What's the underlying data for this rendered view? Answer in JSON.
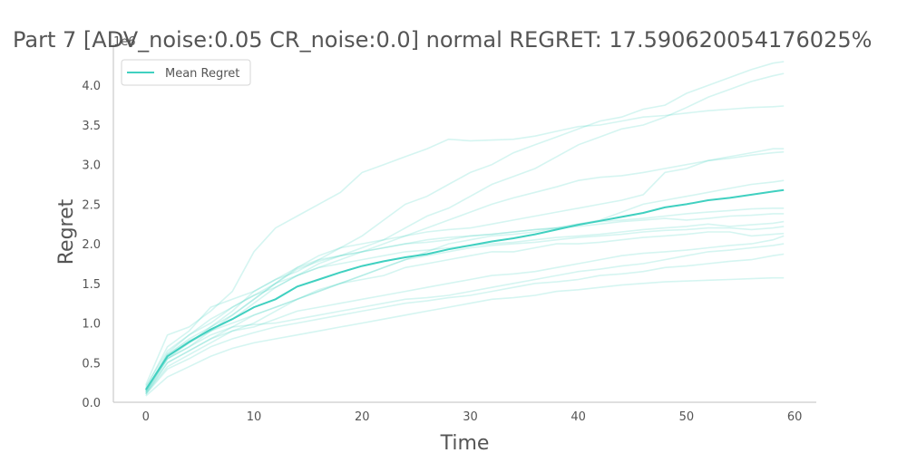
{
  "chart_data": {
    "type": "line",
    "title": "Part 7 [ADV_noise:0.05 CR_noise:0.0] normal REGRET: 17.590620054176025%",
    "xlabel": "Time",
    "ylabel": "Regret",
    "y_scale_label": "1e6",
    "xlim": [
      -3,
      62
    ],
    "ylim": [
      0,
      4.3
    ],
    "x_ticks": [
      0,
      10,
      20,
      30,
      40,
      50,
      60
    ],
    "y_ticks": [
      0.0,
      0.5,
      1.0,
      1.5,
      2.0,
      2.5,
      3.0,
      3.5,
      4.0
    ],
    "x_tick_labels": [
      "0",
      "10",
      "20",
      "30",
      "40",
      "50",
      "60"
    ],
    "y_tick_labels": [
      "0.0",
      "0.5",
      "1.0",
      "1.5",
      "2.0",
      "2.5",
      "3.0",
      "3.5",
      "4.0"
    ],
    "grid": false,
    "legend": {
      "position": "top-left",
      "entries": [
        "Mean Regret"
      ]
    },
    "colors": {
      "mean": "#40d0c0",
      "runs": "#40d0c0",
      "axis": "#cccccc",
      "text": "#555555"
    },
    "x": [
      0,
      2,
      4,
      6,
      8,
      10,
      12,
      14,
      16,
      18,
      20,
      22,
      24,
      26,
      28,
      30,
      32,
      34,
      36,
      38,
      40,
      42,
      44,
      46,
      48,
      50,
      52,
      54,
      56,
      58,
      59
    ],
    "series": [
      {
        "name": "Mean Regret",
        "role": "mean",
        "values": [
          0.16,
          0.58,
          0.76,
          0.92,
          1.05,
          1.2,
          1.3,
          1.46,
          1.55,
          1.64,
          1.72,
          1.78,
          1.83,
          1.87,
          1.93,
          1.98,
          2.03,
          2.07,
          2.12,
          2.18,
          2.24,
          2.29,
          2.34,
          2.39,
          2.46,
          2.5,
          2.55,
          2.58,
          2.62,
          2.66,
          2.68
        ]
      },
      {
        "role": "run",
        "values": [
          0.22,
          0.85,
          0.95,
          1.15,
          1.4,
          1.9,
          2.2,
          2.35,
          2.5,
          2.65,
          2.9,
          3.0,
          3.1,
          3.2,
          3.32,
          3.3,
          3.31,
          3.32,
          3.36,
          3.42,
          3.48,
          3.5,
          3.55,
          3.6,
          3.62,
          3.65,
          3.68,
          3.7,
          3.72,
          3.73,
          3.74
        ]
      },
      {
        "role": "run",
        "values": [
          0.18,
          0.7,
          0.9,
          1.2,
          1.3,
          1.4,
          1.55,
          1.65,
          1.8,
          1.95,
          2.1,
          2.3,
          2.5,
          2.6,
          2.75,
          2.9,
          3.0,
          3.15,
          3.25,
          3.35,
          3.45,
          3.55,
          3.6,
          3.7,
          3.75,
          3.9,
          4.0,
          4.1,
          4.2,
          4.28,
          4.3
        ]
      },
      {
        "role": "run",
        "values": [
          0.15,
          0.62,
          0.85,
          1.05,
          1.2,
          1.35,
          1.45,
          1.6,
          1.75,
          1.85,
          1.95,
          2.05,
          2.2,
          2.35,
          2.45,
          2.6,
          2.75,
          2.85,
          2.95,
          3.1,
          3.25,
          3.35,
          3.45,
          3.5,
          3.6,
          3.72,
          3.85,
          3.95,
          4.05,
          4.12,
          4.15
        ]
      },
      {
        "role": "run",
        "values": [
          0.2,
          0.65,
          0.85,
          1.0,
          1.2,
          1.35,
          1.5,
          1.6,
          1.7,
          1.8,
          1.9,
          2.0,
          2.1,
          2.2,
          2.3,
          2.4,
          2.5,
          2.58,
          2.65,
          2.72,
          2.8,
          2.84,
          2.86,
          2.9,
          2.95,
          3.0,
          3.05,
          3.08,
          3.12,
          3.15,
          3.16
        ]
      },
      {
        "role": "run",
        "values": [
          0.12,
          0.55,
          0.75,
          0.95,
          1.15,
          1.4,
          1.55,
          1.7,
          1.85,
          1.95,
          2.0,
          2.05,
          2.1,
          2.15,
          2.18,
          2.2,
          2.25,
          2.3,
          2.35,
          2.4,
          2.45,
          2.5,
          2.55,
          2.62,
          2.9,
          2.95,
          3.05,
          3.1,
          3.15,
          3.2,
          3.2
        ]
      },
      {
        "role": "run",
        "values": [
          0.1,
          0.5,
          0.65,
          0.8,
          0.95,
          1.1,
          1.2,
          1.3,
          1.4,
          1.5,
          1.6,
          1.7,
          1.8,
          1.9,
          2.0,
          2.05,
          2.1,
          2.12,
          2.15,
          2.2,
          2.25,
          2.3,
          2.4,
          2.5,
          2.55,
          2.6,
          2.65,
          2.7,
          2.75,
          2.78,
          2.8
        ]
      },
      {
        "role": "run",
        "values": [
          0.14,
          0.6,
          0.8,
          0.95,
          1.1,
          1.3,
          1.5,
          1.68,
          1.78,
          1.85,
          1.9,
          1.95,
          2.0,
          2.05,
          2.08,
          2.1,
          2.12,
          2.15,
          2.18,
          2.2,
          2.25,
          2.28,
          2.3,
          2.32,
          2.35,
          2.38,
          2.4,
          2.42,
          2.44,
          2.45,
          2.45
        ]
      },
      {
        "role": "run",
        "values": [
          0.16,
          0.55,
          0.7,
          0.9,
          1.1,
          1.3,
          1.5,
          1.7,
          1.8,
          1.85,
          1.9,
          1.95,
          2.0,
          2.02,
          2.05,
          2.1,
          2.12,
          2.15,
          2.18,
          2.2,
          2.22,
          2.25,
          2.28,
          2.3,
          2.32,
          2.3,
          2.32,
          2.35,
          2.36,
          2.38,
          2.38
        ]
      },
      {
        "role": "run",
        "values": [
          0.13,
          0.58,
          0.75,
          0.9,
          1.05,
          1.25,
          1.45,
          1.6,
          1.7,
          1.75,
          1.8,
          1.85,
          1.9,
          1.92,
          1.95,
          1.98,
          2.0,
          2.02,
          2.05,
          2.08,
          2.1,
          2.12,
          2.15,
          2.18,
          2.2,
          2.22,
          2.25,
          2.22,
          2.24,
          2.26,
          2.28
        ]
      },
      {
        "role": "run",
        "values": [
          0.11,
          0.45,
          0.6,
          0.75,
          0.9,
          1.0,
          1.15,
          1.3,
          1.42,
          1.5,
          1.6,
          1.7,
          1.8,
          1.85,
          1.9,
          1.95,
          1.98,
          2.0,
          2.02,
          2.05,
          2.08,
          2.1,
          2.12,
          2.15,
          2.17,
          2.18,
          2.2,
          2.2,
          2.18,
          2.2,
          2.22
        ]
      },
      {
        "role": "run",
        "values": [
          0.15,
          0.6,
          0.78,
          0.9,
          1.0,
          1.1,
          1.2,
          1.3,
          1.4,
          1.5,
          1.55,
          1.6,
          1.7,
          1.75,
          1.8,
          1.85,
          1.9,
          1.9,
          1.95,
          2.0,
          2.0,
          2.02,
          2.05,
          2.08,
          2.1,
          2.12,
          2.15,
          2.15,
          2.1,
          2.12,
          2.13
        ]
      },
      {
        "role": "run",
        "values": [
          0.12,
          0.5,
          0.65,
          0.8,
          0.9,
          0.95,
          1.05,
          1.15,
          1.2,
          1.25,
          1.3,
          1.35,
          1.4,
          1.45,
          1.5,
          1.55,
          1.6,
          1.62,
          1.65,
          1.7,
          1.75,
          1.8,
          1.85,
          1.88,
          1.9,
          1.92,
          1.95,
          1.98,
          2.0,
          2.05,
          2.1
        ]
      },
      {
        "role": "run",
        "values": [
          0.14,
          0.55,
          0.7,
          0.85,
          0.95,
          0.98,
          1.0,
          1.05,
          1.1,
          1.15,
          1.2,
          1.25,
          1.3,
          1.32,
          1.35,
          1.4,
          1.45,
          1.5,
          1.55,
          1.6,
          1.65,
          1.68,
          1.72,
          1.75,
          1.8,
          1.85,
          1.9,
          1.92,
          1.95,
          1.98,
          2.0
        ]
      },
      {
        "role": "run",
        "values": [
          0.1,
          0.42,
          0.55,
          0.7,
          0.8,
          0.88,
          0.95,
          1.0,
          1.05,
          1.1,
          1.15,
          1.2,
          1.25,
          1.28,
          1.32,
          1.35,
          1.4,
          1.45,
          1.5,
          1.52,
          1.55,
          1.6,
          1.62,
          1.65,
          1.7,
          1.72,
          1.75,
          1.78,
          1.8,
          1.85,
          1.87
        ]
      },
      {
        "role": "run",
        "values": [
          0.08,
          0.32,
          0.45,
          0.58,
          0.68,
          0.75,
          0.8,
          0.85,
          0.9,
          0.95,
          1.0,
          1.05,
          1.1,
          1.15,
          1.2,
          1.25,
          1.3,
          1.32,
          1.35,
          1.4,
          1.42,
          1.45,
          1.48,
          1.5,
          1.52,
          1.53,
          1.54,
          1.55,
          1.56,
          1.57,
          1.57
        ]
      }
    ]
  }
}
